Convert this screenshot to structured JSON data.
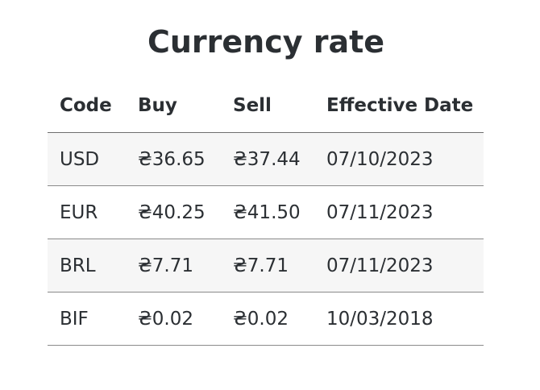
{
  "page": {
    "title": "Currency rate"
  },
  "table": {
    "columns": [
      "Code",
      "Buy",
      "Sell",
      "Effective Date"
    ],
    "rows": [
      {
        "code": "USD",
        "buy": "₴36.65",
        "sell": "₴37.44",
        "date": "07/10/2023"
      },
      {
        "code": "EUR",
        "buy": "₴40.25",
        "sell": "₴41.50",
        "date": "07/11/2023"
      },
      {
        "code": "BRL",
        "buy": "₴7.71",
        "sell": "₴7.71",
        "date": "07/11/2023"
      },
      {
        "code": "BIF",
        "buy": "₴0.02",
        "sell": "₴0.02",
        "date": "10/03/2018"
      }
    ]
  },
  "colors": {
    "text": "#2b2f33",
    "stripe": "#f6f6f6",
    "row_border": "#8a8a8a"
  }
}
